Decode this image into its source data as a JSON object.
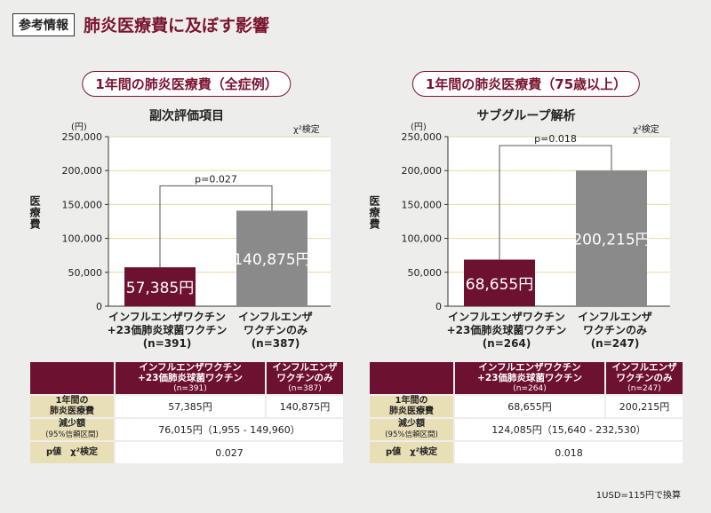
{
  "header": {
    "badge": "参考情報",
    "title": "肺炎医療費に及ぼす影響"
  },
  "panels": [
    {
      "pill": "1年間の肺炎医療費（全症例）",
      "subtitle": "副次評価項目",
      "yunit": "(円)",
      "ylabel": "医療費",
      "test": "χ²検定",
      "cat1": [
        "インフルエンザワクチン",
        "+23価肺炎球菌ワクチン",
        "(n=391)"
      ],
      "cat2": [
        "インフルエンザ",
        "ワクチンのみ",
        "(n=387)"
      ],
      "table": {
        "col1": [
          "インフルエンザワクチン",
          "+23価肺炎球菌ワクチン",
          "(n=391)"
        ],
        "col2": [
          "インフルエンザ",
          "ワクチンのみ",
          "(n=387)"
        ],
        "row1_label": [
          "1年間の",
          "肺炎医療費"
        ],
        "row1_v1": "57,385円",
        "row1_v2": "140,875円",
        "row2_label": [
          "減少額",
          "(95%信頼区間)"
        ],
        "row2_v": "76,015円（1,955 - 149,960）",
        "row3_label": "p値　χ²検定",
        "row3_v": "0.027"
      }
    },
    {
      "pill": "1年間の肺炎医療費（75歳以上）",
      "subtitle": "サブグループ解析",
      "yunit": "(円)",
      "ylabel": "医療費",
      "test": "χ²検定",
      "cat1": [
        "インフルエンザワクチン",
        "+23価肺炎球菌ワクチン",
        "(n=264)"
      ],
      "cat2": [
        "インフルエンザ",
        "ワクチンのみ",
        "(n=247)"
      ],
      "table": {
        "col1": [
          "インフルエンザワクチン",
          "+23価肺炎球菌ワクチン",
          "(n=264)"
        ],
        "col2": [
          "インフルエンザ",
          "ワクチンのみ",
          "(n=247)"
        ],
        "row1_label": [
          "1年間の",
          "肺炎医療費"
        ],
        "row1_v1": "68,655円",
        "row1_v2": "200,215円",
        "row2_label": [
          "減少額",
          "(95%信頼区間)"
        ],
        "row2_v": "124,085円（15,640 - 232,530）",
        "row3_label": "p値　χ²検定",
        "row3_v": "0.018"
      }
    }
  ],
  "footnote": "1USD=115円で換算",
  "colors": {
    "maroon": "#6d1130",
    "gray": "#8a8a8a",
    "grid": "#e8d7a0",
    "pill": "#7a1430"
  },
  "chart_data": [
    {
      "type": "bar",
      "title": "副次評価項目",
      "categories": [
        "インフルエンザワクチン+23価肺炎球菌ワクチン (n=391)",
        "インフルエンザワクチンのみ (n=387)"
      ],
      "values": [
        57385,
        140875
      ],
      "labels": [
        "57,385円",
        "140,875円"
      ],
      "ylim": [
        0,
        250000
      ],
      "yticks": [
        "0",
        "50,000",
        "100,000",
        "150,000",
        "200,000",
        "250,000"
      ],
      "ylabel": "医療費",
      "annotation": "p=0.027"
    },
    {
      "type": "bar",
      "title": "サブグループ解析",
      "categories": [
        "インフルエンザワクチン+23価肺炎球菌ワクチン (n=264)",
        "インフルエンザワクチンのみ (n=247)"
      ],
      "values": [
        68655,
        200215
      ],
      "labels": [
        "68,655円",
        "200,215円"
      ],
      "ylim": [
        0,
        250000
      ],
      "yticks": [
        "0",
        "50,000",
        "100,000",
        "150,000",
        "200,000",
        "250,000"
      ],
      "ylabel": "医療費",
      "annotation": "p=0.018"
    }
  ]
}
